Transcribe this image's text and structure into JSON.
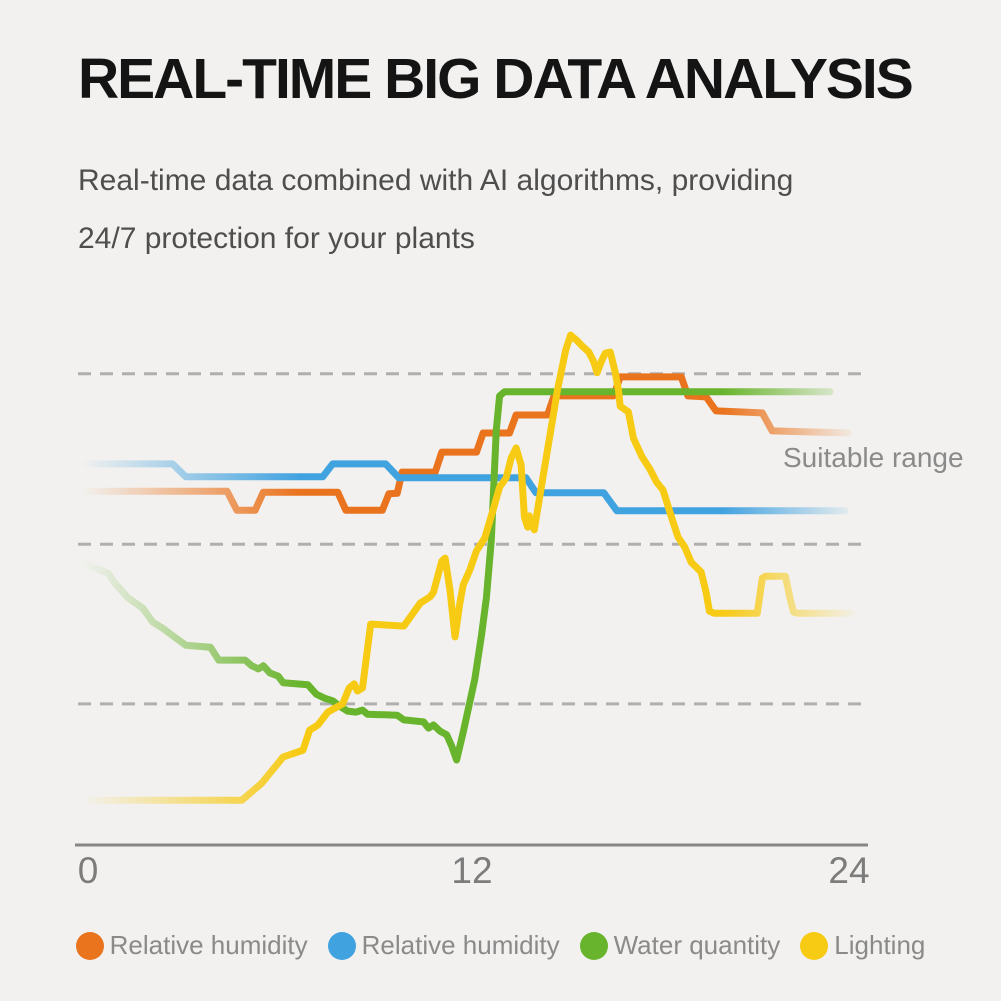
{
  "page": {
    "background": "#f2f1ef",
    "title": "REAL-TIME BIG DATA ANALYSIS",
    "subtitle_lines": [
      "Real-time data combined with AI algorithms, providing",
      "24/7 protection for your plants"
    ]
  },
  "chart_data": {
    "type": "line",
    "title": "",
    "xlabel": "",
    "ylabel": "",
    "x_axis": {
      "range": [
        0,
        24
      ],
      "ticks": [
        "0",
        "12",
        "24"
      ],
      "tick_values": [
        0,
        12,
        24
      ]
    },
    "y_axis": {
      "range": [
        0,
        100
      ],
      "visible": false
    },
    "grid": "dashed-horizontal",
    "gridlines_pct": [
      91.5,
      58.4,
      27.4
    ],
    "grid_color": "#afafaf",
    "axis_color": "#878787",
    "tick_color": "#7c7c7c",
    "legend_position": "bottom",
    "annotation": {
      "text": "Suitable range",
      "color": "#8a8a8a"
    },
    "series": [
      {
        "name": "Relative humidity",
        "color": "#ea731d",
        "points": [
          [
            0.3,
            68.7
          ],
          [
            4.6,
            68.7
          ],
          [
            4.9,
            65.0
          ],
          [
            5.45,
            65.0
          ],
          [
            5.7,
            68.5
          ],
          [
            7.95,
            68.5
          ],
          [
            8.2,
            65.0
          ],
          [
            9.3,
            65.0
          ],
          [
            9.5,
            68.2
          ],
          [
            9.75,
            68.3
          ],
          [
            9.9,
            72.4
          ],
          [
            10.9,
            72.4
          ],
          [
            11.1,
            76.3
          ],
          [
            12.15,
            76.3
          ],
          [
            12.35,
            80.0
          ],
          [
            13.15,
            80.0
          ],
          [
            13.35,
            83.5
          ],
          [
            14.3,
            83.5
          ],
          [
            14.5,
            87.2
          ],
          [
            16.3,
            87.2
          ],
          [
            16.5,
            90.9
          ],
          [
            18.35,
            90.9
          ],
          [
            18.55,
            87.2
          ],
          [
            19.1,
            87.0
          ],
          [
            19.4,
            84.3
          ],
          [
            20.8,
            83.9
          ],
          [
            21.1,
            80.4
          ],
          [
            23.4,
            80.0
          ]
        ]
      },
      {
        "name": "Relative humidity",
        "color": "#41a2e0",
        "points": [
          [
            0.3,
            74.0
          ],
          [
            2.95,
            74.0
          ],
          [
            3.35,
            71.5
          ],
          [
            7.5,
            71.5
          ],
          [
            7.8,
            74.0
          ],
          [
            9.4,
            74.0
          ],
          [
            9.8,
            71.3
          ],
          [
            13.65,
            71.3
          ],
          [
            13.95,
            68.4
          ],
          [
            16.0,
            68.4
          ],
          [
            16.4,
            64.9
          ],
          [
            23.3,
            64.9
          ]
        ]
      },
      {
        "name": "Water quantity",
        "color": "#68b42c",
        "points": [
          [
            0.15,
            54.9
          ],
          [
            1.0,
            52.8
          ],
          [
            1.2,
            50.9
          ],
          [
            1.6,
            48.0
          ],
          [
            2.05,
            46.0
          ],
          [
            2.35,
            43.3
          ],
          [
            2.65,
            42.1
          ],
          [
            3.05,
            40.2
          ],
          [
            3.35,
            38.8
          ],
          [
            4.1,
            38.4
          ],
          [
            4.35,
            35.9
          ],
          [
            5.15,
            35.9
          ],
          [
            5.35,
            34.8
          ],
          [
            5.55,
            34.2
          ],
          [
            5.7,
            34.8
          ],
          [
            5.9,
            33.4
          ],
          [
            6.15,
            32.8
          ],
          [
            6.3,
            31.5
          ],
          [
            7.05,
            31.1
          ],
          [
            7.3,
            29.3
          ],
          [
            7.55,
            28.5
          ],
          [
            7.8,
            28.0
          ],
          [
            8.05,
            26.8
          ],
          [
            8.25,
            26.0
          ],
          [
            8.5,
            25.8
          ],
          [
            8.7,
            26.2
          ],
          [
            8.85,
            25.4
          ],
          [
            9.75,
            25.2
          ],
          [
            9.95,
            24.3
          ],
          [
            10.55,
            23.9
          ],
          [
            10.7,
            22.7
          ],
          [
            10.85,
            23.3
          ],
          [
            11.05,
            22.1
          ],
          [
            11.25,
            21.4
          ],
          [
            11.4,
            19.2
          ],
          [
            11.55,
            16.5
          ],
          [
            11.75,
            21.9
          ],
          [
            12.1,
            32.2
          ],
          [
            12.3,
            40.6
          ],
          [
            12.45,
            48.0
          ],
          [
            12.6,
            59.2
          ],
          [
            12.75,
            80.6
          ],
          [
            12.85,
            87.2
          ],
          [
            13.0,
            88.0
          ],
          [
            22.85,
            88.0
          ]
        ]
      },
      {
        "name": "Lighting",
        "color": "#f7ca14",
        "points": [
          [
            0.3,
            8.7
          ],
          [
            5.05,
            8.7
          ],
          [
            5.65,
            12.0
          ],
          [
            6.3,
            17.1
          ],
          [
            6.9,
            18.4
          ],
          [
            7.1,
            22.3
          ],
          [
            7.35,
            23.3
          ],
          [
            7.65,
            25.8
          ],
          [
            8.1,
            27.4
          ],
          [
            8.3,
            30.5
          ],
          [
            8.45,
            31.3
          ],
          [
            8.55,
            29.9
          ],
          [
            8.7,
            30.5
          ],
          [
            8.95,
            42.9
          ],
          [
            9.95,
            42.5
          ],
          [
            10.15,
            44.3
          ],
          [
            10.45,
            47.0
          ],
          [
            10.75,
            48.2
          ],
          [
            10.85,
            49.1
          ],
          [
            11.1,
            55.1
          ],
          [
            11.2,
            55.7
          ],
          [
            11.35,
            49.5
          ],
          [
            11.5,
            40.4
          ],
          [
            11.65,
            47.0
          ],
          [
            11.75,
            50.5
          ],
          [
            11.95,
            53.4
          ],
          [
            12.15,
            57.1
          ],
          [
            12.4,
            59.6
          ],
          [
            12.65,
            65.0
          ],
          [
            12.85,
            69.5
          ],
          [
            13.05,
            71.3
          ],
          [
            13.2,
            75.1
          ],
          [
            13.35,
            77.1
          ],
          [
            13.5,
            73.8
          ],
          [
            13.6,
            63.7
          ],
          [
            13.7,
            61.7
          ],
          [
            13.75,
            63.9
          ],
          [
            13.9,
            61.2
          ],
          [
            14.15,
            70.9
          ],
          [
            14.45,
            82.5
          ],
          [
            14.6,
            88.3
          ],
          [
            14.85,
            96.1
          ],
          [
            15.0,
            99.0
          ],
          [
            15.2,
            97.9
          ],
          [
            15.35,
            96.9
          ],
          [
            15.55,
            95.7
          ],
          [
            15.7,
            93.8
          ],
          [
            15.8,
            91.7
          ],
          [
            15.95,
            94.2
          ],
          [
            16.05,
            95.5
          ],
          [
            16.2,
            95.7
          ],
          [
            16.35,
            91.8
          ],
          [
            16.45,
            88.3
          ],
          [
            16.5,
            85.2
          ],
          [
            16.75,
            84.1
          ],
          [
            16.9,
            79.0
          ],
          [
            17.15,
            75.5
          ],
          [
            17.4,
            73.0
          ],
          [
            17.6,
            70.5
          ],
          [
            17.8,
            68.9
          ],
          [
            18.0,
            64.7
          ],
          [
            18.25,
            59.8
          ],
          [
            18.45,
            57.9
          ],
          [
            18.65,
            54.9
          ],
          [
            18.95,
            53.0
          ],
          [
            19.1,
            49.1
          ],
          [
            19.2,
            45.4
          ],
          [
            19.35,
            45.0
          ],
          [
            20.65,
            45.0
          ],
          [
            20.8,
            51.8
          ],
          [
            20.9,
            52.2
          ],
          [
            21.5,
            52.2
          ],
          [
            21.65,
            47.6
          ],
          [
            21.75,
            45.2
          ],
          [
            21.9,
            45.0
          ],
          [
            23.5,
            45.0
          ]
        ]
      }
    ]
  }
}
